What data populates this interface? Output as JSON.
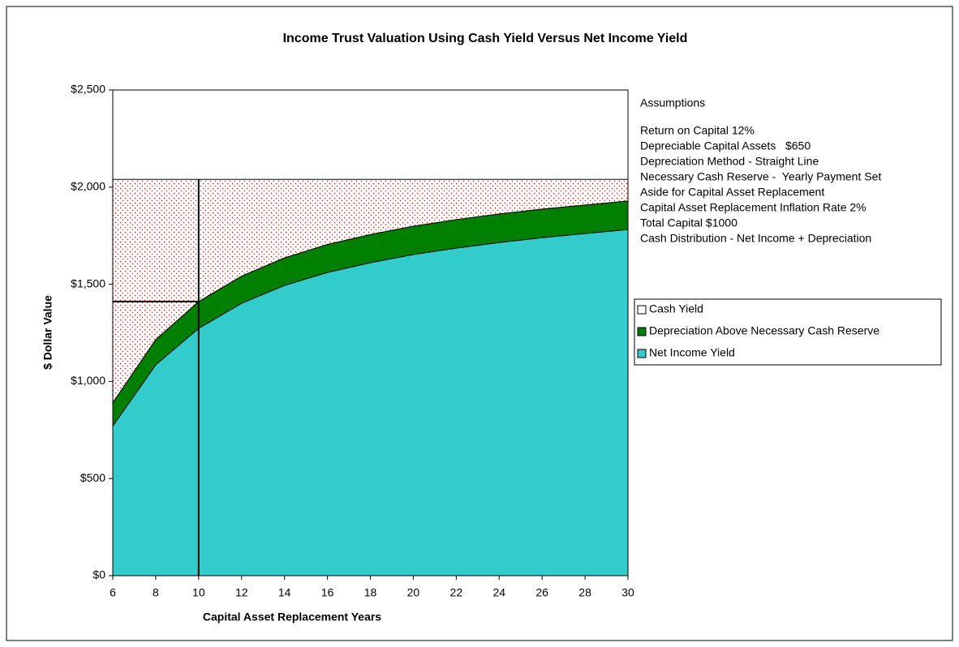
{
  "chart_data": {
    "type": "stacked_area",
    "title": "Income Trust Valuation Using Cash Yield Versus Net Income Yield",
    "xlabel": "Capital Asset Replacement Years",
    "ylabel": "$ Dollar Value",
    "x": [
      6,
      8,
      10,
      12,
      14,
      16,
      18,
      20,
      22,
      24,
      26,
      28,
      30
    ],
    "xlim": [
      6,
      30
    ],
    "ylim": [
      0,
      2500
    ],
    "yticks": [
      {
        "value": 0,
        "label": "$0"
      },
      {
        "value": 500,
        "label": "$500"
      },
      {
        "value": 1000,
        "label": "$1,000"
      },
      {
        "value": 1500,
        "label": "$1,500"
      },
      {
        "value": 2000,
        "label": "$2,000"
      },
      {
        "value": 2500,
        "label": "$2,500"
      }
    ],
    "series": [
      {
        "name": "Net Income Yield",
        "color": "#33cccc",
        "values": [
          770,
          1085,
          1273,
          1402,
          1494,
          1561,
          1611,
          1653,
          1686,
          1715,
          1740,
          1761,
          1782
        ]
      },
      {
        "name": "Depreciation Above Necessary Cash Reserve",
        "color": "#008000",
        "values": [
          120,
          130,
          138,
          140,
          142,
          144,
          145,
          146,
          147,
          147,
          147,
          147,
          147
        ]
      },
      {
        "name": "Cash Yield",
        "color": "#ff0000",
        "values": [
          1150,
          825,
          629,
          498,
          404,
          335,
          284,
          241,
          207,
          178,
          153,
          132,
          111
        ]
      }
    ],
    "reference_x": 10,
    "reference_y": 1411,
    "assumptions_title": "Assumptions",
    "assumptions": [
      "Return on Capital 12%",
      "Depreciable Capital Assets   $650",
      "Depreciation Method - Straight Line",
      "Necessary Cash Reserve -  Yearly Payment Set",
      "Aside for Capital Asset Replacement",
      "Capital Asset Replacement Inflation Rate 2%",
      "Total Capital $1000",
      "Cash Distribution - Net Income + Depreciation"
    ]
  }
}
